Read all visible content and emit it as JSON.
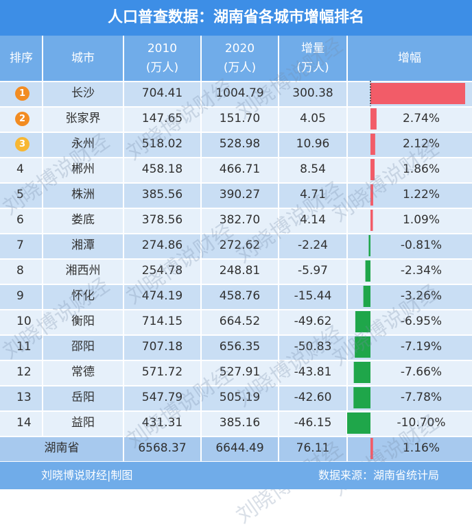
{
  "title": "人口普查数据：湖南省各城市增幅排名",
  "headers": {
    "rank": "排序",
    "city": "城市",
    "y2010": "2010\n(万人)",
    "y2020": "2020\n(万人)",
    "delta": "增量\n(万人)",
    "growth": "增幅"
  },
  "rows": [
    {
      "rank": "1",
      "city": "长沙",
      "v2010": "704.41",
      "v2020": "1004.79",
      "delta": "300.38",
      "growth": "42.64%"
    },
    {
      "rank": "2",
      "city": "张家界",
      "v2010": "147.65",
      "v2020": "151.70",
      "delta": "4.05",
      "growth": "2.74%"
    },
    {
      "rank": "3",
      "city": "永州",
      "v2010": "518.02",
      "v2020": "528.98",
      "delta": "10.96",
      "growth": "2.12%"
    },
    {
      "rank": "4",
      "city": "郴州",
      "v2010": "458.18",
      "v2020": "466.71",
      "delta": "8.54",
      "growth": "1.86%"
    },
    {
      "rank": "5",
      "city": "株洲",
      "v2010": "385.56",
      "v2020": "390.27",
      "delta": "4.71",
      "growth": "1.22%"
    },
    {
      "rank": "6",
      "city": "娄底",
      "v2010": "378.56",
      "v2020": "382.70",
      "delta": "4.14",
      "growth": "1.09%"
    },
    {
      "rank": "7",
      "city": "湘潭",
      "v2010": "274.86",
      "v2020": "272.62",
      "delta": "-2.24",
      "growth": "-0.81%"
    },
    {
      "rank": "8",
      "city": "湘西州",
      "v2010": "254.78",
      "v2020": "248.81",
      "delta": "-5.97",
      "growth": "-2.34%"
    },
    {
      "rank": "9",
      "city": "怀化",
      "v2010": "474.19",
      "v2020": "458.76",
      "delta": "-15.44",
      "growth": "-3.26%"
    },
    {
      "rank": "10",
      "city": "衡阳",
      "v2010": "714.15",
      "v2020": "664.52",
      "delta": "-49.62",
      "growth": "-6.95%"
    },
    {
      "rank": "11",
      "city": "邵阳",
      "v2010": "707.18",
      "v2020": "656.35",
      "delta": "-50.83",
      "growth": "-7.19%"
    },
    {
      "rank": "12",
      "city": "常德",
      "v2010": "571.72",
      "v2020": "527.91",
      "delta": "-43.81",
      "growth": "-7.66%"
    },
    {
      "rank": "13",
      "city": "岳阳",
      "v2010": "547.79",
      "v2020": "505.19",
      "delta": "-42.60",
      "growth": "-7.78%"
    },
    {
      "rank": "14",
      "city": "益阳",
      "v2010": "431.31",
      "v2020": "385.16",
      "delta": "-46.15",
      "growth": "-10.70%"
    }
  ],
  "total": {
    "city": "湖南省",
    "v2010": "6568.37",
    "v2020": "6644.49",
    "delta": "76.11",
    "growth": "1.16%"
  },
  "footer": {
    "left": "刘晓博说财经|制图",
    "right": "数据来源：湖南省统计局"
  },
  "watermark": "刘晓博说财经",
  "colors": {
    "title_bg": "#3d8ee6",
    "header_bg": "#70ace9",
    "positive": "#f25c68",
    "negative": "#1fa64a",
    "gold": "#f7b733",
    "orange": "#f28c22"
  },
  "chart_data": {
    "type": "bar",
    "categories": [
      "长沙",
      "张家界",
      "永州",
      "郴州",
      "株洲",
      "娄底",
      "湘潭",
      "湘西州",
      "怀化",
      "衡阳",
      "邵阳",
      "常德",
      "岳阳",
      "益阳",
      "湖南省"
    ],
    "values": [
      42.64,
      2.74,
      2.12,
      1.86,
      1.22,
      1.09,
      -0.81,
      -2.34,
      -3.26,
      -6.95,
      -7.19,
      -7.66,
      -7.78,
      -10.7,
      1.16
    ],
    "ylabel": "增幅"
  }
}
